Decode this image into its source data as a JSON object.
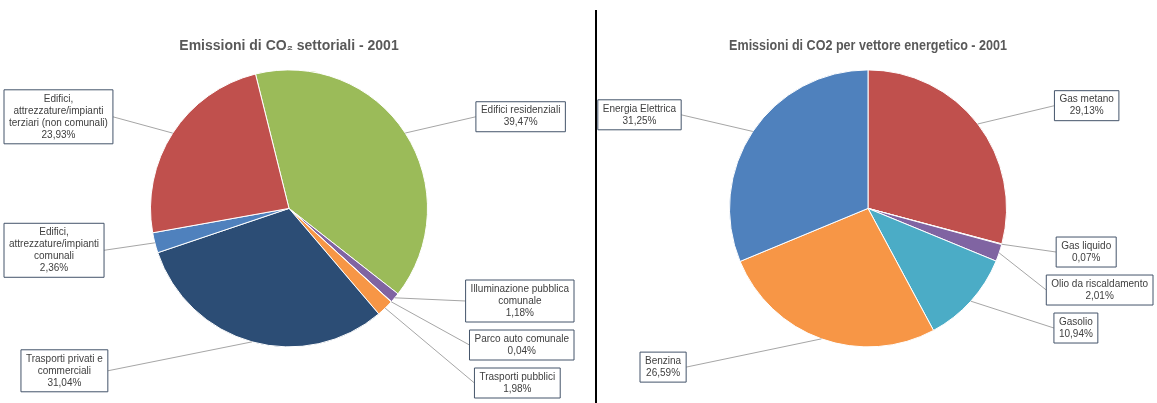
{
  "chart_data": [
    {
      "type": "pie",
      "title": "Emissioni di CO₂ settoriali - 2001",
      "categories": [
        "Edifici residenziali",
        "Illuminazione pubblica comunale",
        "Parco auto comunale",
        "Trasporti pubblici",
        "Trasporti privati e commerciali",
        "Edifici, attrezzature/impianti comunali",
        "Edifici, attrezzature/impianti terziari (non comunali)"
      ],
      "values": [
        39.47,
        1.18,
        0.04,
        1.98,
        31.04,
        2.36,
        23.93
      ],
      "colors": [
        "#9bbb59",
        "#8064a2",
        "#4bacc6",
        "#f79646",
        "#2c4d75",
        "#4f81bd",
        "#c0504d"
      ],
      "value_labels": [
        "39,47%",
        "1,18%",
        "0,04%",
        "1,98%",
        "31,04%",
        "2,36%",
        "23,93%"
      ]
    },
    {
      "type": "pie",
      "title": "Emissioni di CO2 per vettore energetico - 2001",
      "categories": [
        "Gas metano",
        "Gas liquido",
        "Olio da riscaldamento",
        "Gasolio",
        "Benzina",
        "Energia Elettrica"
      ],
      "values": [
        29.13,
        0.07,
        2.01,
        10.94,
        26.59,
        31.25
      ],
      "colors": [
        "#c0504d",
        "#9bbb59",
        "#8064a2",
        "#4bacc6",
        "#f79646",
        "#4f81bd"
      ],
      "value_labels": [
        "29,13%",
        "0,07%",
        "2,01%",
        "10,94%",
        "26,59%",
        "31,25%"
      ]
    }
  ]
}
